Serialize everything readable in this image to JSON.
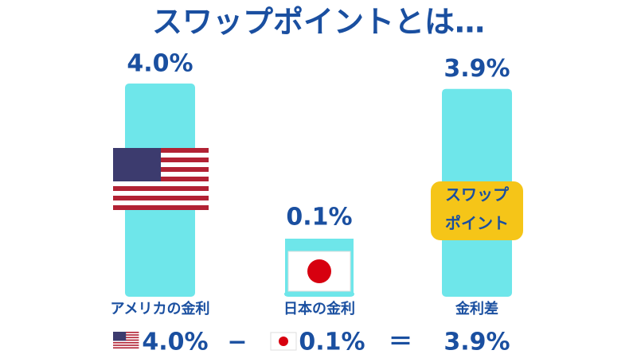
{
  "header": {
    "title": "スワップポイントとは…"
  },
  "chart_data": {
    "type": "bar",
    "categories": [
      "アメリカの金利",
      "日本の金利",
      "金利差"
    ],
    "values": [
      4.0,
      0.1,
      3.9
    ],
    "value_labels": [
      "4.0%",
      "0.1%",
      "3.9%"
    ],
    "color": "#6ee6ea",
    "badge_label": [
      "スワップ",
      "ポイント"
    ],
    "formula_operators": [
      "−",
      "＝"
    ]
  }
}
